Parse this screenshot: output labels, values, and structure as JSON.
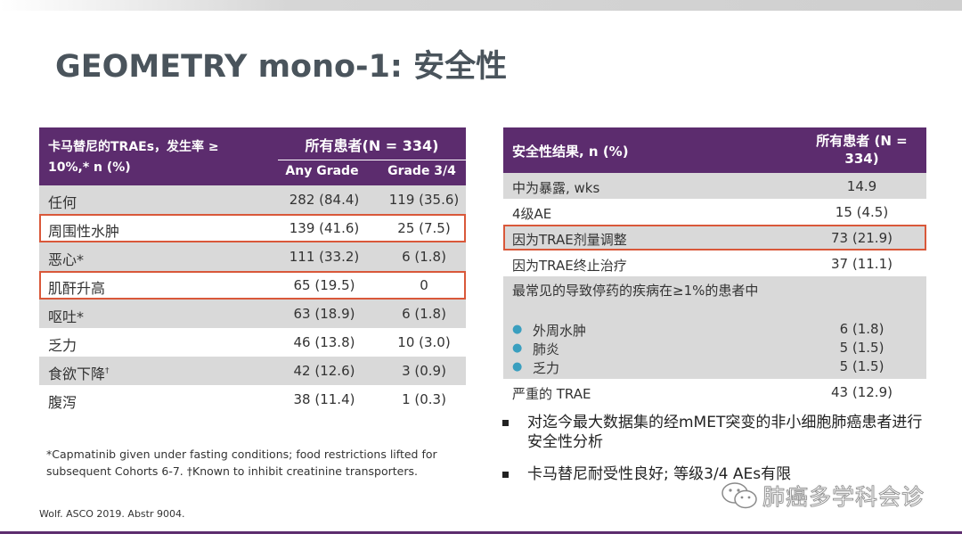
{
  "title": "GEOMETRY mono-1: 安全性",
  "left_table": {
    "header_label": "卡马替尼的TRAEs，发生率 ≥ 10%,* n (%)",
    "group_header": "所有患者(N = 334)",
    "col1": "Any Grade",
    "col2": "Grade 3/4",
    "rows": [
      {
        "label": "任何",
        "sup": "",
        "any": "282 (84.4)",
        "g34": "119 (35.6)"
      },
      {
        "label": "周围性水肿",
        "sup": "",
        "any": "139 (41.6)",
        "g34": "25 (7.5)"
      },
      {
        "label": "恶心*",
        "sup": "",
        "any": "111 (33.2)",
        "g34": "6 (1.8)"
      },
      {
        "label": "肌酐升高",
        "sup": "",
        "any": "65 (19.5)",
        "g34": "0"
      },
      {
        "label": "呕吐*",
        "sup": "",
        "any": "63 (18.9)",
        "g34": "6 (1.8)"
      },
      {
        "label": "乏力",
        "sup": "",
        "any": "46 (13.8)",
        "g34": "10 (3.0)"
      },
      {
        "label": "食欲下降",
        "sup": "†",
        "any": "42 (12.6)",
        "g34": "3 (0.9)"
      },
      {
        "label": "腹泻",
        "sup": "",
        "any": "38 (11.4)",
        "g34": "1 (0.3)"
      }
    ]
  },
  "footnote": "*Capmatinib given under fasting conditions; food restrictions lifted for subsequent Cohorts 6-7. †Known to inhibit creatinine transporters.",
  "citation": "Wolf. ASCO 2019. Abstr 9004.",
  "right_table": {
    "header_label": "安全性结果, n (%)",
    "header_value": "所有患者 (N = 334)",
    "rows": [
      {
        "label": "中为暴露, wks",
        "value": "14.9"
      },
      {
        "label": "4级AE",
        "value": "15 (4.5)"
      },
      {
        "label": "因为TRAE剂量调整",
        "value": "73 (21.9)"
      },
      {
        "label": "因为TRAE终止治疗",
        "value": "37 (11.1)"
      }
    ],
    "block": {
      "label": "最常见的导致停药的疾病在≥1%的患者中",
      "items": [
        {
          "label": "外周水肿",
          "value": "6 (1.8)"
        },
        {
          "label": "肺炎",
          "value": "5 (1.5)"
        },
        {
          "label": "乏力",
          "value": "5 (1.5)"
        }
      ]
    },
    "last_row": {
      "label": "严重的 TRAE",
      "value": "43 (12.9)"
    }
  },
  "bullets": [
    "对迄今最大数据集的经mMET突变的非小细胞肺癌患者进行安全性分析",
    "卡马替尼耐受性良好; 等级3/4 AEs有限"
  ],
  "watermark": "肺癌多学科会诊",
  "colors": {
    "header_purple": "#5c2c6e",
    "highlight": "#d9583a",
    "row_shade": "#d9d9d9"
  }
}
